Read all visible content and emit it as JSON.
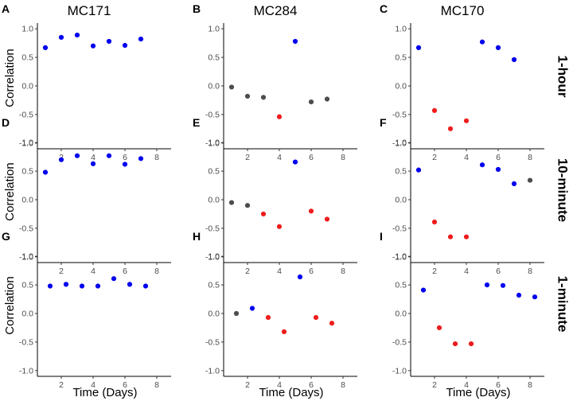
{
  "colors": {
    "positive": "#0000ee",
    "negative": "#ee1c1c",
    "neutral": "#4d4d4d"
  },
  "axes": {
    "ylabel": "Correlation",
    "xlabel": "Time (Days)",
    "xlim": [
      0.5,
      8.9
    ],
    "ylim": [
      -1.1,
      1.1
    ],
    "xticks": [
      2,
      4,
      6,
      8
    ],
    "yticks": [
      1.0,
      0.5,
      0.0,
      -0.5,
      -1.0
    ],
    "ytick_labels": [
      "1.0",
      "0.5",
      "0.0",
      "-0.5",
      "-1.0"
    ]
  },
  "columns": [
    "MC171",
    "MC284",
    "MC170"
  ],
  "rows": [
    "1-hour",
    "10-minute",
    "1-minute"
  ],
  "chart_data": [
    {
      "type": "scatter",
      "label": "A",
      "x": [
        1,
        2,
        3,
        4,
        5,
        6,
        7
      ],
      "y": [
        0.67,
        0.85,
        0.89,
        0.7,
        0.78,
        0.71,
        0.82
      ],
      "class": [
        "positive",
        "positive",
        "positive",
        "positive",
        "positive",
        "positive",
        "positive"
      ]
    },
    {
      "type": "scatter",
      "label": "B",
      "x": [
        1,
        2,
        3,
        4,
        5,
        6,
        7
      ],
      "y": [
        -0.02,
        -0.18,
        -0.2,
        -0.54,
        0.78,
        -0.28,
        -0.23
      ],
      "class": [
        "neutral",
        "neutral",
        "neutral",
        "negative",
        "positive",
        "neutral",
        "neutral"
      ]
    },
    {
      "type": "scatter",
      "label": "C",
      "x": [
        1,
        2,
        3,
        4,
        5,
        6,
        7
      ],
      "y": [
        0.67,
        -0.43,
        -0.75,
        -0.61,
        0.77,
        0.67,
        0.46
      ],
      "class": [
        "positive",
        "negative",
        "negative",
        "negative",
        "positive",
        "positive",
        "positive"
      ]
    },
    {
      "type": "scatter",
      "label": "D",
      "x": [
        1,
        2,
        3,
        4,
        5,
        6,
        7
      ],
      "y": [
        0.48,
        0.7,
        0.77,
        0.63,
        0.77,
        0.62,
        0.72
      ],
      "class": [
        "positive",
        "positive",
        "positive",
        "positive",
        "positive",
        "positive",
        "positive"
      ]
    },
    {
      "type": "scatter",
      "label": "E",
      "x": [
        1,
        2,
        3,
        4,
        5,
        6,
        7
      ],
      "y": [
        -0.05,
        -0.1,
        -0.25,
        -0.47,
        0.66,
        -0.2,
        -0.34
      ],
      "class": [
        "neutral",
        "neutral",
        "negative",
        "negative",
        "positive",
        "negative",
        "negative"
      ]
    },
    {
      "type": "scatter",
      "label": "F",
      "x": [
        1,
        2,
        3,
        4,
        5,
        6,
        7,
        8
      ],
      "y": [
        0.52,
        -0.39,
        -0.65,
        -0.65,
        0.61,
        0.53,
        0.28,
        0.34
      ],
      "class": [
        "positive",
        "negative",
        "negative",
        "negative",
        "positive",
        "positive",
        "positive",
        "neutral"
      ]
    },
    {
      "type": "scatter",
      "label": "G",
      "x": [
        1.3,
        2.3,
        3.3,
        4.3,
        5.3,
        6.3,
        7.3
      ],
      "y": [
        0.48,
        0.51,
        0.48,
        0.48,
        0.61,
        0.51,
        0.48
      ],
      "class": [
        "positive",
        "positive",
        "positive",
        "positive",
        "positive",
        "positive",
        "positive"
      ]
    },
    {
      "type": "scatter",
      "label": "H",
      "x": [
        1.3,
        2.3,
        3.3,
        4.3,
        5.3,
        6.3,
        7.3
      ],
      "y": [
        0.0,
        0.09,
        -0.07,
        -0.32,
        0.64,
        -0.07,
        -0.17
      ],
      "class": [
        "neutral",
        "positive",
        "negative",
        "negative",
        "positive",
        "negative",
        "negative"
      ]
    },
    {
      "type": "scatter",
      "label": "I",
      "x": [
        1.3,
        2.3,
        3.3,
        4.3,
        5.3,
        6.3,
        7.3,
        8.3
      ],
      "y": [
        0.41,
        -0.25,
        -0.53,
        -0.53,
        0.5,
        0.49,
        0.32,
        0.29
      ],
      "class": [
        "positive",
        "negative",
        "negative",
        "negative",
        "positive",
        "positive",
        "positive",
        "positive"
      ]
    }
  ]
}
